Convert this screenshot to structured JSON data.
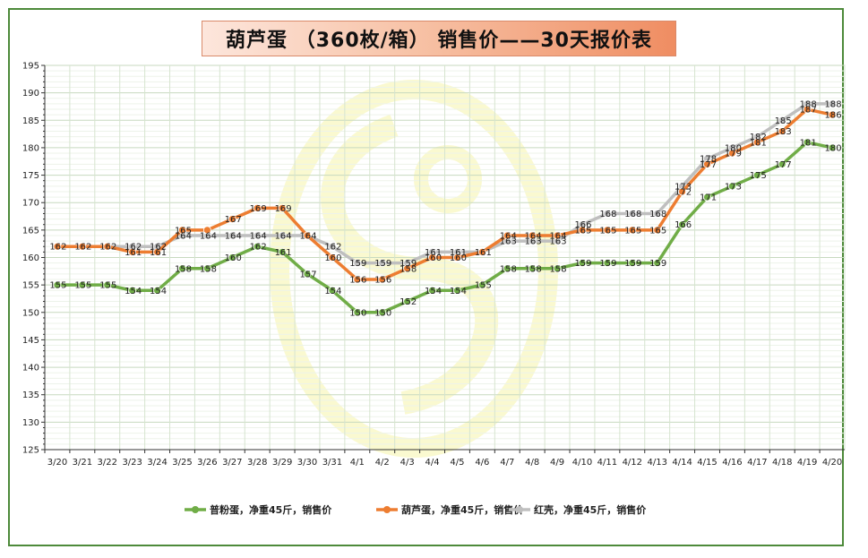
{
  "chart_data": {
    "type": "line",
    "title": "葫芦蛋 （360枚/箱） 销售价——30天报价表",
    "x": [
      "3/20",
      "3/21",
      "3/22",
      "3/23",
      "3/24",
      "3/25",
      "3/26",
      "3/27",
      "3/28",
      "3/29",
      "3/30",
      "3/31",
      "4/1",
      "4/2",
      "4/3",
      "4/4",
      "4/5",
      "4/6",
      "4/7",
      "4/8",
      "4/9",
      "4/10",
      "4/11",
      "4/12",
      "4/13",
      "4/14",
      "4/15",
      "4/16",
      "4/17",
      "4/18",
      "4/19",
      "4/20"
    ],
    "ylim": [
      125,
      195
    ],
    "yticks": [
      125,
      130,
      135,
      140,
      145,
      150,
      155,
      160,
      165,
      170,
      175,
      180,
      185,
      190,
      195
    ],
    "grid": true,
    "legend_position": "bottom",
    "series": [
      {
        "name": "普粉蛋，净重45斤，销售价",
        "color": "#70ad47",
        "values": [
          155,
          155,
          155,
          154,
          154,
          158,
          158,
          160,
          162,
          161,
          157,
          154,
          150,
          150,
          152,
          154,
          154,
          155,
          158,
          158,
          158,
          159,
          159,
          159,
          159,
          166,
          171,
          173,
          175,
          177,
          181,
          180
        ],
        "labels": [
          "155",
          "155",
          "155",
          "154",
          "154",
          "158",
          "158",
          "160",
          "162",
          "161",
          "157",
          "154",
          "150",
          "150",
          "152",
          "154",
          "154",
          "155",
          "158",
          "158",
          "158",
          "159",
          "159",
          "159",
          "159",
          "166",
          "171",
          "173",
          "175",
          "177",
          "181",
          "180"
        ]
      },
      {
        "name": "葫芦蛋，净重45斤，销售价",
        "color": "#ed7d31",
        "values": [
          162,
          162,
          162,
          161,
          161,
          165,
          165,
          167,
          169,
          169,
          164,
          160,
          156,
          156,
          158,
          160,
          160,
          161,
          164,
          164,
          164,
          165,
          165,
          165,
          165,
          172,
          177,
          179,
          181,
          183,
          187,
          186
        ],
        "labels": [
          "",
          "",
          "",
          "161",
          "161",
          "165",
          "",
          "167",
          "169",
          "169",
          "",
          "160",
          "156",
          "156",
          "158",
          "160",
          "160",
          "",
          "164",
          "164",
          "164",
          "165",
          "165",
          "165",
          "165",
          "172",
          "177",
          "179",
          "181",
          "183",
          "187",
          "186"
        ]
      },
      {
        "name": "红壳，净重45斤，销售价",
        "color": "#bfbfbf",
        "values": [
          162,
          162,
          162,
          162,
          162,
          164,
          164,
          164,
          164,
          164,
          164,
          162,
          159,
          159,
          159,
          161,
          161,
          161,
          163,
          163,
          163,
          166,
          168,
          168,
          168,
          173,
          178,
          180,
          182,
          185,
          188,
          188
        ],
        "labels": [
          "162",
          "162",
          "162",
          "162",
          "162",
          "164",
          "164",
          "164",
          "164",
          "164",
          "164",
          "162",
          "159",
          "159",
          "159",
          "161",
          "161",
          "161",
          "163",
          "163",
          "163",
          "166",
          "168",
          "168",
          "168",
          "173",
          "178",
          "180",
          "182",
          "185",
          "188",
          "188"
        ]
      }
    ]
  }
}
